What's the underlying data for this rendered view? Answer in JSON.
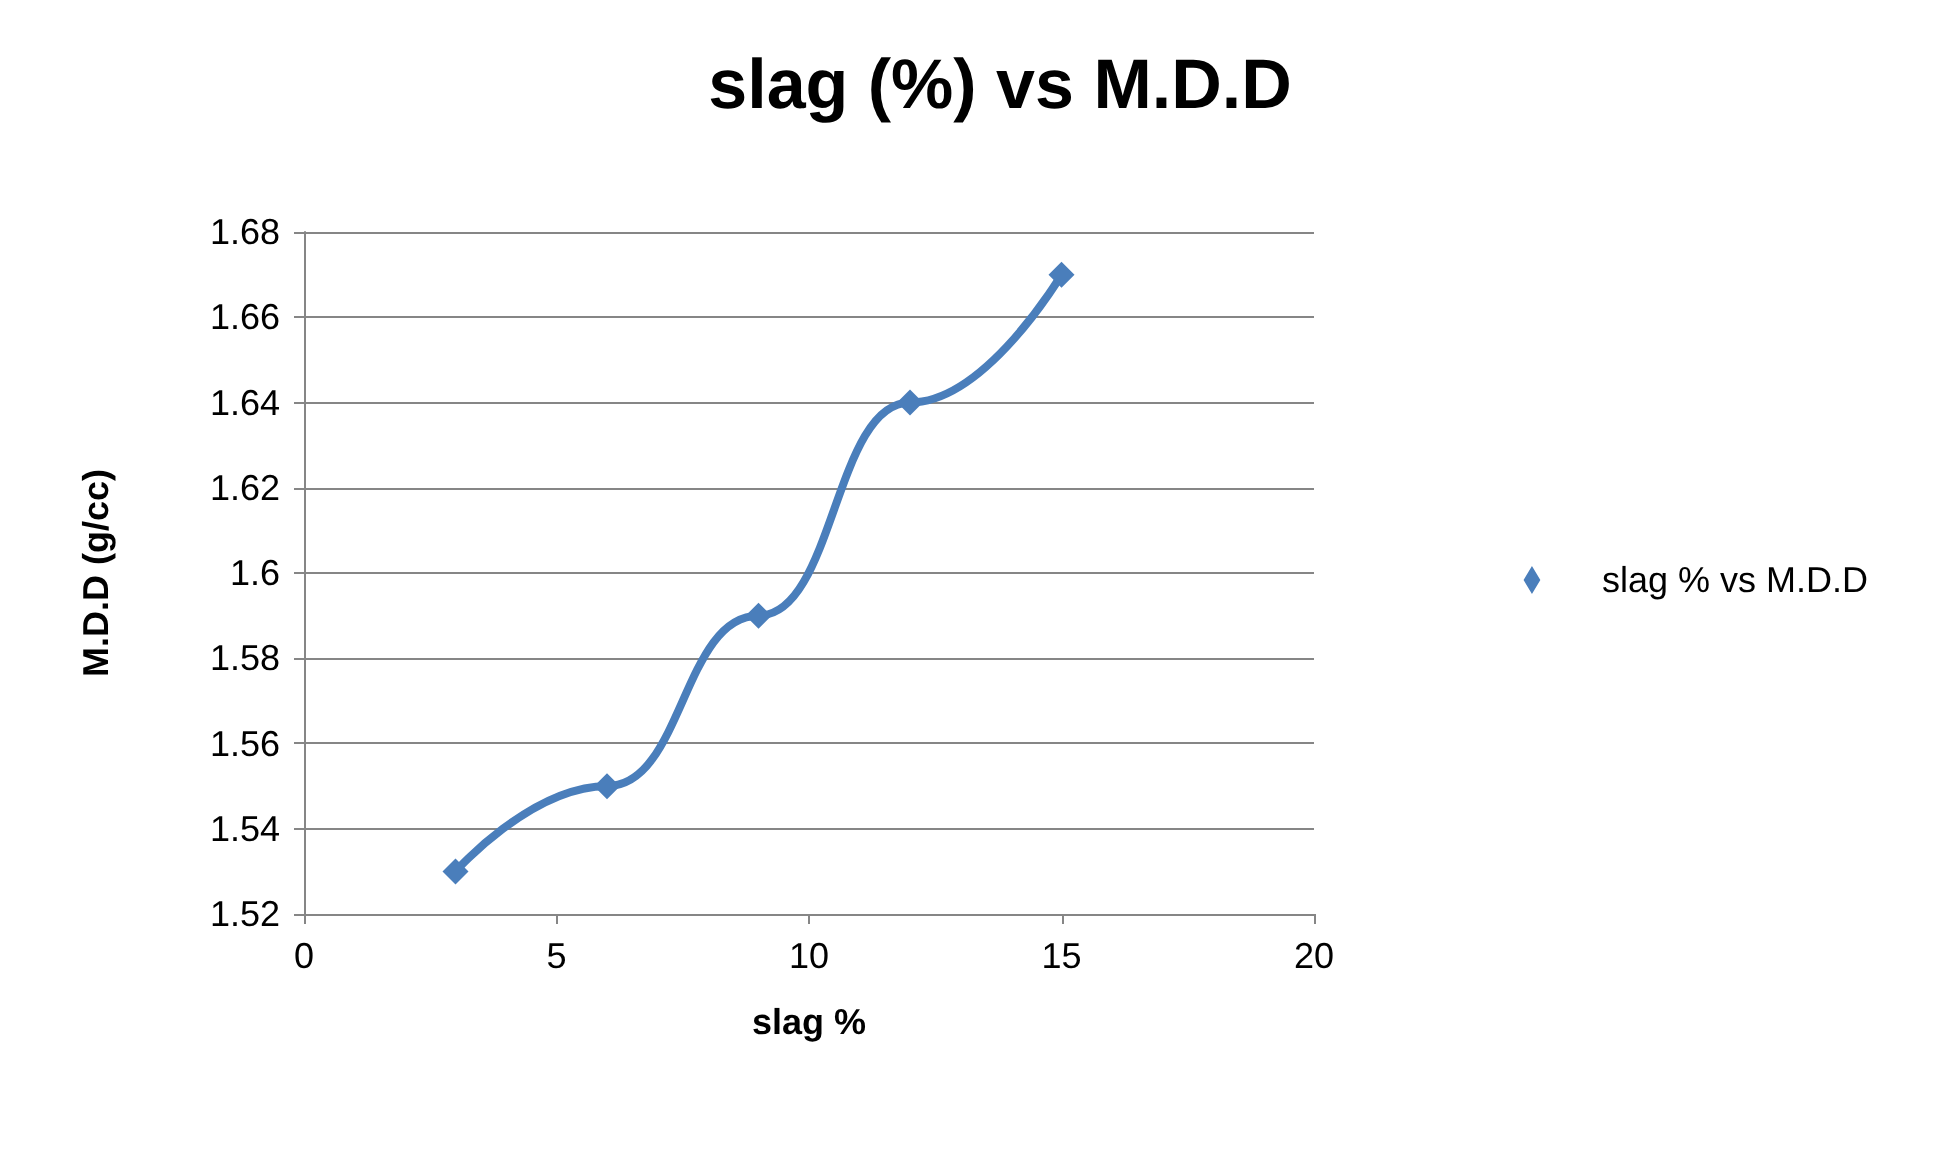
{
  "chart_data": {
    "type": "line",
    "title": "slag (%) vs M.D.D",
    "xlabel": "slag %",
    "ylabel": "M.D.D (g/cc)",
    "x": [
      3,
      6,
      9,
      12,
      15
    ],
    "series": [
      {
        "name": "slag % vs M.D.D",
        "color": "#4a7ebb",
        "values": [
          1.53,
          1.55,
          1.59,
          1.64,
          1.67
        ]
      }
    ],
    "xlim": [
      0,
      20
    ],
    "xticks": [
      0,
      5,
      10,
      15,
      20
    ],
    "ylim": [
      1.52,
      1.68
    ],
    "yticks": [
      1.52,
      1.54,
      1.56,
      1.58,
      1.6,
      1.62,
      1.64,
      1.66,
      1.68
    ],
    "grid": "y",
    "legend": "right",
    "marker": "diamond",
    "line_style": "solid"
  }
}
